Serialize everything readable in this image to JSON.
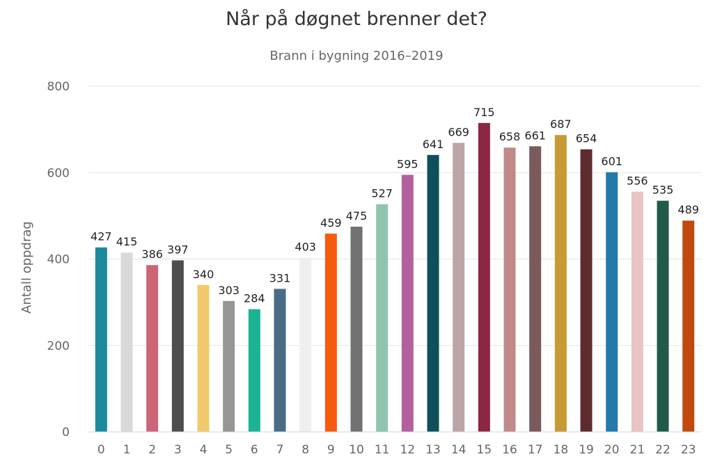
{
  "chart_data": {
    "type": "bar",
    "title": "Når på døgnet brenner det?",
    "subtitle": "Brann i bygning 2016–2019",
    "ylabel": "Antall oppdrag",
    "xlabel": "",
    "ylim": [
      0,
      800
    ],
    "yticks": [
      0,
      200,
      400,
      600,
      800
    ],
    "grid": true,
    "data_labels": true,
    "categories": [
      "0",
      "1",
      "2",
      "3",
      "4",
      "5",
      "6",
      "7",
      "8",
      "9",
      "10",
      "11",
      "12",
      "13",
      "14",
      "15",
      "16",
      "17",
      "18",
      "19",
      "20",
      "21",
      "22",
      "23"
    ],
    "values": [
      427,
      415,
      386,
      397,
      340,
      303,
      284,
      331,
      403,
      459,
      475,
      527,
      595,
      641,
      669,
      715,
      658,
      661,
      687,
      654,
      601,
      556,
      535,
      489
    ],
    "colors": [
      "#1b8a9c",
      "#d9d9d9",
      "#cc6677",
      "#4d4d4d",
      "#f0c96a",
      "#969696",
      "#1ab394",
      "#4a6b85",
      "#efefef",
      "#f75a0d",
      "#727272",
      "#90c4ae",
      "#b3609d",
      "#0e4f5a",
      "#bba5a6",
      "#8b2742",
      "#c08a89",
      "#7a5a5a",
      "#c79a33",
      "#5e2b2e",
      "#2479ab",
      "#e8c4c4",
      "#205a4a",
      "#c04a0e"
    ]
  }
}
